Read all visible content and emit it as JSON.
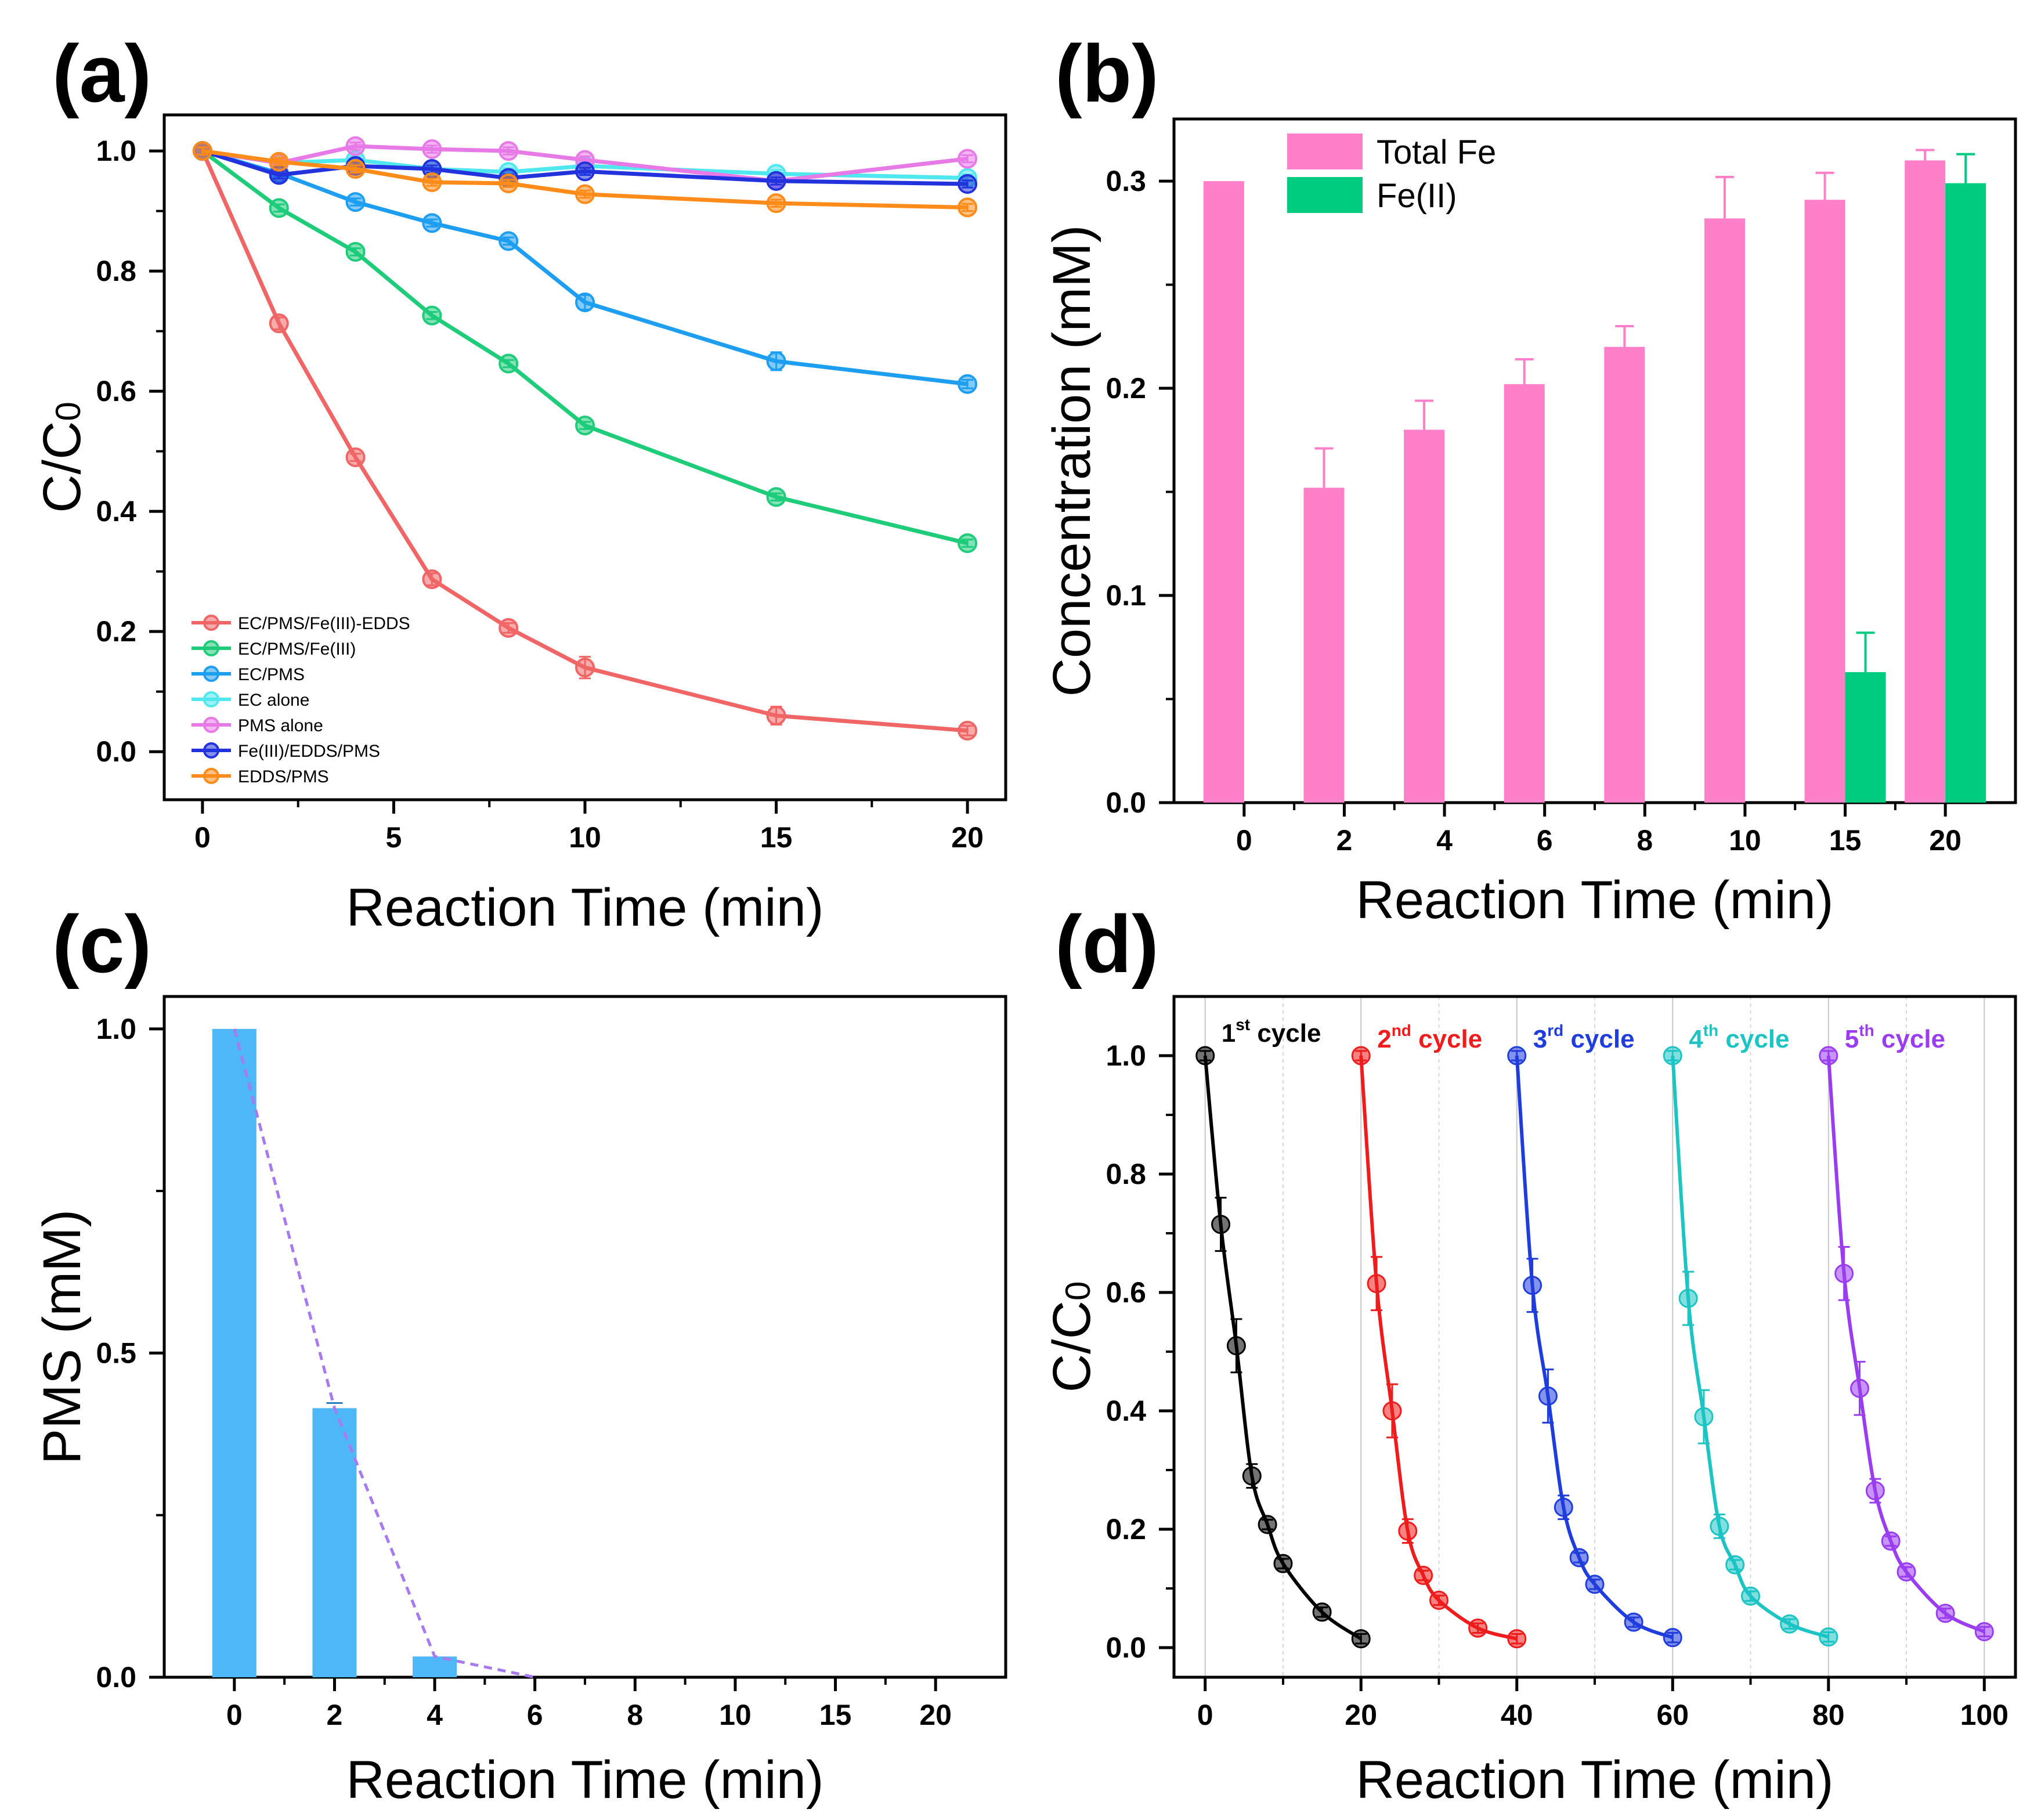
{
  "chart_data": [
    {
      "panel": "(a)",
      "type": "line",
      "xlabel": "Reaction Time (min)",
      "ylabel": "C/C",
      "ylabel_sub": "0",
      "xticks": [
        "0",
        "5",
        "10",
        "15",
        "20"
      ],
      "yticks": [
        "0.0",
        "0.2",
        "0.4",
        "0.6",
        "0.8",
        "1.0"
      ],
      "x": [
        0,
        2,
        4,
        6,
        8,
        10,
        15,
        20
      ],
      "xlim": [
        -1,
        21
      ],
      "ylim": [
        -0.08,
        1.06
      ],
      "series": [
        {
          "name": "EC/PMS/Fe(III)-EDDS",
          "color": "#f06666",
          "values": [
            1.0,
            0.713,
            0.49,
            0.287,
            0.206,
            0.14,
            0.06,
            0.035
          ]
        },
        {
          "name": "EC/PMS/Fe(III)",
          "color": "#1ecc7a",
          "values": [
            1.0,
            0.905,
            0.832,
            0.726,
            0.646,
            0.543,
            0.424,
            0.347
          ]
        },
        {
          "name": "EC/PMS",
          "color": "#1e9ef0",
          "values": [
            1.0,
            0.963,
            0.915,
            0.88,
            0.85,
            0.748,
            0.65,
            0.612
          ]
        },
        {
          "name": "EC alone",
          "color": "#4ee8ee",
          "values": [
            1.0,
            0.98,
            0.985,
            0.97,
            0.965,
            0.975,
            0.962,
            0.955
          ]
        },
        {
          "name": "PMS alone",
          "color": "#e87ae8",
          "values": [
            1.0,
            0.98,
            1.008,
            1.003,
            1.0,
            0.985,
            0.95,
            0.987
          ]
        },
        {
          "name": "Fe(III)/EDDS/PMS",
          "color": "#2233dd",
          "values": [
            1.0,
            0.96,
            0.975,
            0.97,
            0.955,
            0.966,
            0.95,
            0.945
          ]
        },
        {
          "name": "EDDS/PMS",
          "color": "#ff8c1a",
          "values": [
            1.0,
            0.982,
            0.97,
            0.948,
            0.946,
            0.928,
            0.913,
            0.906
          ]
        }
      ]
    },
    {
      "panel": "(b)",
      "type": "bar",
      "xlabel": "Reaction Time (min)",
      "ylabel": "Concentration (mM)",
      "categories": [
        "0",
        "2",
        "4",
        "6",
        "8",
        "10",
        "15",
        "20"
      ],
      "yticks": [
        "0.0",
        "0.1",
        "0.2",
        "0.3"
      ],
      "ylim": [
        0,
        0.33
      ],
      "series": [
        {
          "name": "Total Fe",
          "color": "#ff7fc8",
          "values": [
            0.3,
            0.152,
            0.18,
            0.202,
            0.22,
            0.282,
            0.291,
            0.31
          ],
          "errors": [
            0,
            0.019,
            0.014,
            0.012,
            0.01,
            0.02,
            0.013,
            0.005
          ]
        },
        {
          "name": "Fe(II)",
          "color": "#00cc80",
          "values": [
            0,
            0,
            0,
            0,
            0,
            0,
            0.063,
            0.299
          ],
          "errors": [
            0,
            0,
            0,
            0,
            0,
            0,
            0.019,
            0.014
          ]
        }
      ]
    },
    {
      "panel": "(c)",
      "type": "bar",
      "xlabel": "Reaction Time (min)",
      "ylabel": "PMS (mM)",
      "categories": [
        "0",
        "2",
        "4",
        "6",
        "8",
        "10",
        "15",
        "20"
      ],
      "yticks": [
        "0.0",
        "0.5",
        "1.0"
      ],
      "ylim": [
        0,
        1.05
      ],
      "color": "#4db8f5",
      "trend_color": "#a87af0",
      "values": [
        1.0,
        0.415,
        0.032,
        0,
        0,
        0,
        0,
        0
      ],
      "trend": [
        1.0,
        0.415,
        0.032,
        0.0
      ]
    },
    {
      "panel": "(d)",
      "type": "line",
      "xlabel": "Reaction Time (min)",
      "ylabel": "C/C",
      "ylabel_sub": "0",
      "xticks": [
        "0",
        "20",
        "40",
        "60",
        "80",
        "100"
      ],
      "yticks": [
        "0.0",
        "0.2",
        "0.4",
        "0.6",
        "0.8",
        "1.0"
      ],
      "xlim": [
        -4,
        104
      ],
      "ylim": [
        -0.05,
        1.1
      ],
      "cycles": [
        {
          "label": "1",
          "sup": "st",
          "word": " cycle",
          "color": "#000000",
          "x": [
            0,
            2,
            4,
            6,
            8,
            10,
            15,
            20
          ],
          "values": [
            1.0,
            0.715,
            0.51,
            0.29,
            0.208,
            0.142,
            0.06,
            0.015
          ]
        },
        {
          "label": "2",
          "sup": "nd",
          "word": " cycle",
          "color": "#ee1c1c",
          "x": [
            20,
            22,
            24,
            26,
            28,
            30,
            35,
            40
          ],
          "values": [
            1.0,
            0.615,
            0.4,
            0.197,
            0.122,
            0.08,
            0.033,
            0.015
          ]
        },
        {
          "label": "3",
          "sup": "rd",
          "word": " cycle",
          "color": "#1f3ddd",
          "x": [
            40,
            42,
            44,
            46,
            48,
            50,
            55,
            60
          ],
          "values": [
            1.0,
            0.612,
            0.425,
            0.237,
            0.152,
            0.107,
            0.043,
            0.017
          ]
        },
        {
          "label": "4",
          "sup": "th",
          "word": " cycle",
          "color": "#1cc4c4",
          "x": [
            60,
            62,
            64,
            66,
            68,
            70,
            75,
            80
          ],
          "values": [
            1.0,
            0.59,
            0.39,
            0.205,
            0.14,
            0.087,
            0.04,
            0.018
          ]
        },
        {
          "label": "5",
          "sup": "th",
          "word": " cycle",
          "color": "#9a3df0",
          "x": [
            80,
            82,
            84,
            86,
            88,
            90,
            95,
            100
          ],
          "values": [
            1.0,
            0.632,
            0.438,
            0.265,
            0.18,
            0.128,
            0.058,
            0.027
          ]
        }
      ]
    }
  ]
}
